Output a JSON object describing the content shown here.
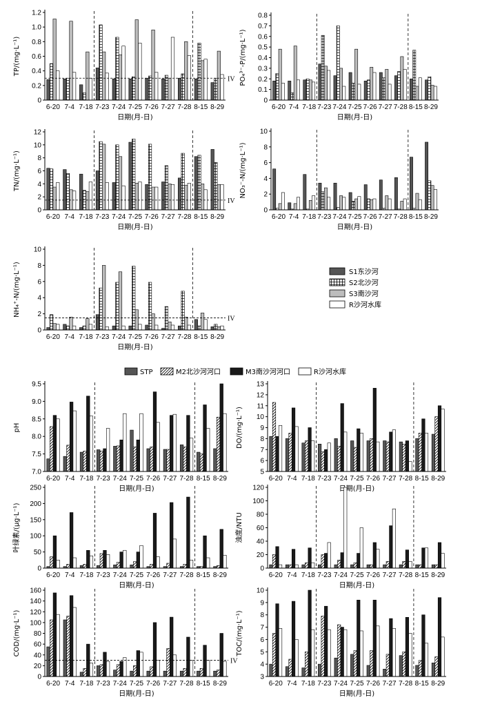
{
  "chart_data": [
    {
      "type": "bar",
      "categories": [
        "6-20",
        "7-4",
        "7-18",
        "7-23",
        "7-24",
        "7-25",
        "7-26",
        "7-27",
        "7-28",
        "8-15",
        "8-29"
      ],
      "series": [
        {
          "name": "S1东沙河",
          "values": [
            0.28,
            0.29,
            0.21,
            0.44,
            0.29,
            0.29,
            0.3,
            0.29,
            0.3,
            0.29,
            0.24
          ]
        },
        {
          "name": "S2北沙河",
          "values": [
            0.5,
            0.3,
            0.1,
            1.03,
            0.86,
            0.32,
            0.33,
            0.34,
            0.36,
            0.78,
            0.3
          ]
        },
        {
          "name": "S3南沙河",
          "values": [
            1.11,
            1.08,
            0.66,
            0.66,
            0.62,
            1.1,
            0.96,
            0.3,
            0.8,
            0.54,
            0.67
          ]
        },
        {
          "name": "R沙河水库",
          "values": [
            0.4,
            0.38,
            0.3,
            0.37,
            0.74,
            0.78,
            0.38,
            0.86,
            0.61,
            0.56,
            0.35
          ]
        }
      ],
      "ylabel": "TP/(mg·L⁻¹)",
      "xlabel": "日期(月-日)",
      "ylim": [
        0,
        1.2
      ],
      "yticks": [
        "0",
        "0.2",
        "0.4",
        "0.6",
        "0.8",
        "1.0",
        "1.2"
      ],
      "reference": {
        "value": 0.3,
        "label": "IV"
      },
      "dashed_after": [
        "7-18",
        "7-28"
      ]
    },
    {
      "type": "bar",
      "categories": [
        "6-20",
        "7-4",
        "7-18",
        "7-23",
        "7-24",
        "7-25",
        "7-26",
        "7-27",
        "7-28",
        "8-15",
        "8-29"
      ],
      "series": [
        {
          "name": "S1东沙河",
          "values": [
            0.18,
            0.18,
            0.19,
            0.34,
            0.23,
            0.26,
            0.18,
            0.26,
            0.23,
            0.2,
            0.19
          ]
        },
        {
          "name": "S2北沙河",
          "values": [
            0.25,
            0.07,
            0.2,
            0.61,
            0.7,
            0.16,
            0.19,
            0.21,
            0.27,
            0.47,
            0.22
          ]
        },
        {
          "name": "S3南沙河",
          "values": [
            0.48,
            0.51,
            0.19,
            0.32,
            0.3,
            0.48,
            0.31,
            0.29,
            0.41,
            0.13,
            0.14
          ]
        },
        {
          "name": "R沙河水库",
          "values": [
            0.16,
            0.19,
            0.17,
            0.28,
            0.13,
            0.15,
            0.26,
            0.15,
            0.29,
            0.21,
            0.13
          ]
        }
      ],
      "ylabel": "PO₄³⁻-P/(mg·L⁻¹)",
      "xlabel": "日期(月-日)",
      "ylim": [
        0,
        0.8
      ],
      "yticks": [
        "0",
        "0.1",
        "0.2",
        "0.3",
        "0.4",
        "0.5",
        "0.6",
        "0.7",
        "0.8"
      ],
      "dashed_after": [
        "7-18",
        "7-28"
      ]
    },
    {
      "type": "bar",
      "categories": [
        "6-20",
        "7-4",
        "7-18",
        "7-23",
        "7-24",
        "7-25",
        "7-26",
        "7-27",
        "7-28",
        "8-15",
        "8-29"
      ],
      "series": [
        {
          "name": "S1东沙河",
          "values": [
            6.4,
            6.2,
            5.5,
            6.0,
            4.2,
            10.4,
            3.9,
            4.3,
            4.9,
            8.2,
            9.3
          ]
        },
        {
          "name": "S2北沙河",
          "values": [
            6.3,
            5.6,
            3.0,
            10.5,
            10.0,
            10.9,
            10.1,
            6.8,
            8.7,
            8.4,
            7.3
          ]
        },
        {
          "name": "S3南沙河",
          "values": [
            3.5,
            3.1,
            2.8,
            10.1,
            8.2,
            4.1,
            3.5,
            4.0,
            3.8,
            4.0,
            3.9
          ]
        },
        {
          "name": "R沙河水库",
          "values": [
            4.2,
            2.9,
            4.3,
            4.2,
            3.7,
            4.3,
            3.5,
            3.9,
            4.1,
            3.1,
            3.9
          ]
        }
      ],
      "ylabel": "TN/(mg·L⁻¹)",
      "xlabel": "日期(月-日)",
      "ylim": [
        0,
        12
      ],
      "yticks": [
        "0",
        "2",
        "4",
        "6",
        "8",
        "10",
        "12"
      ],
      "reference": {
        "value": 1.5,
        "label": "IV"
      },
      "dashed_after": [
        "7-18",
        "7-28"
      ]
    },
    {
      "type": "bar",
      "categories": [
        "6-20",
        "7-4",
        "7-18",
        "7-23",
        "7-24",
        "7-25",
        "7-26",
        "7-27",
        "7-28",
        "8-15",
        "8-29"
      ],
      "series": [
        {
          "name": "S1东沙河",
          "values": [
            5.2,
            0.9,
            4.5,
            3.4,
            3.4,
            2.2,
            3.2,
            3.8,
            4.1,
            6.7,
            8.6
          ]
        },
        {
          "name": "S2北沙河",
          "values": [
            0.2,
            0.1,
            0.1,
            2.3,
            0.3,
            1.1,
            1.4,
            0.2,
            0.1,
            0.2,
            3.7
          ]
        },
        {
          "name": "S3南沙河",
          "values": [
            0.8,
            0.8,
            1.2,
            2.8,
            1.8,
            1.4,
            1.3,
            1.8,
            1.1,
            2.1,
            3.1
          ]
        },
        {
          "name": "R沙河水库",
          "values": [
            2.2,
            1.6,
            1.8,
            1.6,
            1.6,
            1.7,
            1.4,
            1.4,
            1.4,
            1.3,
            2.6
          ]
        }
      ],
      "ylabel": "NO₃⁻-N/(mg·L⁻¹)",
      "xlabel": "日期(月-日)",
      "ylim": [
        0,
        10
      ],
      "yticks": [
        "0",
        "2",
        "4",
        "6",
        "8",
        "10"
      ],
      "dashed_after": [
        "7-18",
        "7-28"
      ]
    },
    {
      "type": "bar",
      "categories": [
        "6-20",
        "7-4",
        "7-18",
        "7-23",
        "7-24",
        "7-25",
        "7-26",
        "7-27",
        "7-28",
        "8-15",
        "8-29"
      ],
      "series": [
        {
          "name": "S1东沙河",
          "values": [
            0.3,
            0.7,
            0.3,
            1.9,
            0.5,
            0.5,
            0.6,
            0.2,
            0.5,
            1.3,
            0.4
          ]
        },
        {
          "name": "S2北沙河",
          "values": [
            1.9,
            0.5,
            0.5,
            5.2,
            5.9,
            7.9,
            5.9,
            2.9,
            4.8,
            0.5,
            0.7
          ]
        },
        {
          "name": "S3南沙河",
          "values": [
            0.8,
            1.6,
            1.4,
            8.0,
            7.2,
            2.5,
            2.0,
            1.0,
            1.6,
            2.1,
            0.4
          ]
        },
        {
          "name": "R沙河水库",
          "values": [
            0.7,
            0.5,
            0.7,
            0.4,
            0.5,
            0.7,
            0.6,
            0.6,
            0.6,
            1.3,
            0.5
          ]
        }
      ],
      "ylabel": "NH₄⁺-N/(mg·L⁻¹)",
      "xlabel": "日期(月-日)",
      "ylim": [
        0,
        10
      ],
      "yticks": [
        "0",
        "2",
        "4",
        "6",
        "8",
        "10"
      ],
      "reference": {
        "value": 1.5,
        "label": "IV"
      },
      "dashed_after": [
        "7-18",
        "7-28"
      ]
    },
    {
      "type": "bar",
      "categories": [
        "6-20",
        "7-4",
        "7-18",
        "7-23",
        "7-24",
        "7-25",
        "7-26",
        "7-27",
        "7-28",
        "8-15",
        "8-29"
      ],
      "series": [
        {
          "name": "STP",
          "values": [
            7.36,
            7.43,
            7.55,
            7.62,
            7.72,
            8.18,
            7.65,
            7.63,
            7.76,
            7.55,
            7.65
          ]
        },
        {
          "name": "M2北沙河河口",
          "values": [
            8.28,
            7.75,
            7.58,
            7.58,
            7.73,
            7.7,
            7.7,
            7.63,
            7.7,
            7.5,
            8.55
          ]
        },
        {
          "name": "M3南沙河河口",
          "values": [
            8.6,
            8.98,
            9.15,
            7.65,
            7.9,
            7.9,
            9.27,
            8.6,
            8.6,
            8.9,
            9.52
          ]
        },
        {
          "name": "R沙河水库",
          "values": [
            8.5,
            8.73,
            8.58,
            8.23,
            8.65,
            8.65,
            8.4,
            8.63,
            7.95,
            8.23,
            8.65
          ]
        }
      ],
      "ylabel": "pH",
      "xlabel": "日期(月-日)",
      "ylim": [
        7.0,
        9.5
      ],
      "yticks": [
        "7.0",
        "7.5",
        "8.0",
        "8.5",
        "9.0",
        "9.5"
      ],
      "dashed_after": [
        "7-18",
        "7-28"
      ]
    },
    {
      "type": "bar",
      "categories": [
        "6-20",
        "7-4",
        "7-18",
        "7-23",
        "7-24",
        "7-25",
        "7-26",
        "7-27",
        "7-28",
        "8-15",
        "8-29"
      ],
      "series": [
        {
          "name": "STP",
          "values": [
            8.2,
            8.0,
            7.6,
            7.5,
            8.0,
            7.8,
            7.8,
            7.8,
            7.7,
            8.0,
            8.4
          ]
        },
        {
          "name": "M2北沙河河口",
          "values": [
            11.3,
            8.5,
            7.8,
            6.8,
            7.3,
            7.2,
            8.0,
            7.7,
            7.5,
            8.5,
            10.0
          ]
        },
        {
          "name": "M3南沙河河口",
          "values": [
            8.2,
            10.8,
            9.0,
            7.0,
            11.2,
            8.9,
            12.6,
            8.6,
            7.8,
            9.8,
            11.0
          ]
        },
        {
          "name": "R沙河水库",
          "values": [
            9.2,
            9.1,
            7.8,
            7.6,
            8.6,
            8.5,
            7.7,
            8.8,
            5.9,
            8.5,
            10.7
          ]
        }
      ],
      "ylabel": "DO/(mg·L⁻¹)",
      "xlabel": "日期(月-日)",
      "ylim": [
        5,
        13
      ],
      "yticks": [
        "5",
        "6",
        "7",
        "8",
        "9",
        "10",
        "11",
        "12",
        "13"
      ],
      "dashed_after": [
        "7-18",
        "7-28"
      ]
    },
    {
      "type": "bar",
      "categories": [
        "6-20",
        "7-4",
        "7-18",
        "7-23",
        "7-24",
        "7-25",
        "7-26",
        "7-27",
        "7-28",
        "8-15",
        "8-29"
      ],
      "series": [
        {
          "name": "STP",
          "values": [
            5,
            5,
            8,
            8,
            10,
            10,
            5,
            5,
            5,
            5,
            5
          ]
        },
        {
          "name": "M2北沙河河口",
          "values": [
            35,
            12,
            12,
            45,
            18,
            20,
            12,
            15,
            12,
            5,
            8
          ]
        },
        {
          "name": "M3南沙河河口",
          "values": [
            100,
            172,
            55,
            55,
            50,
            50,
            170,
            203,
            220,
            100,
            120
          ]
        },
        {
          "name": "R沙河水库",
          "values": [
            25,
            32,
            38,
            42,
            55,
            70,
            35,
            90,
            25,
            32,
            40
          ]
        }
      ],
      "ylabel": "叶绿素/(μg·L⁻¹)",
      "xlabel": "日期(月-日)",
      "ylim": [
        0,
        250
      ],
      "yticks": [
        "0",
        "50",
        "100",
        "150",
        "200",
        "250"
      ],
      "dashed_after": [
        "7-18",
        "7-28"
      ]
    },
    {
      "type": "bar",
      "categories": [
        "6-20",
        "7-4",
        "7-18",
        "7-23",
        "7-24",
        "7-25",
        "7-26",
        "7-27",
        "7-28",
        "8-15",
        "8-29"
      ],
      "series": [
        {
          "name": "STP",
          "values": [
            5,
            5,
            5,
            5,
            5,
            5,
            5,
            5,
            5,
            5,
            5
          ]
        },
        {
          "name": "M2北沙河河口",
          "values": [
            20,
            5,
            8,
            20,
            12,
            8,
            5,
            10,
            10,
            5,
            5
          ]
        },
        {
          "name": "M3南沙河河口",
          "values": [
            32,
            28,
            30,
            22,
            23,
            22,
            38,
            63,
            27,
            30,
            38
          ]
        },
        {
          "name": "R沙河水库",
          "values": [
            5,
            5,
            8,
            38,
            120,
            60,
            28,
            88,
            10,
            30,
            22
          ]
        }
      ],
      "ylabel": "浊度/NTU",
      "xlabel": "日期(月-日)",
      "ylim": [
        0,
        120
      ],
      "yticks": [
        "0",
        "20",
        "40",
        "60",
        "80",
        "100",
        "120"
      ],
      "dashed_after": [
        "7-18",
        "7-28"
      ]
    },
    {
      "type": "bar",
      "categories": [
        "6-20",
        "7-4",
        "7-18",
        "7-23",
        "7-24",
        "7-25",
        "7-26",
        "7-27",
        "7-28",
        "8-15",
        "8-29"
      ],
      "series": [
        {
          "name": "STP",
          "values": [
            55,
            105,
            8,
            20,
            12,
            10,
            10,
            10,
            10,
            10,
            10
          ]
        },
        {
          "name": "M2北沙河河口",
          "values": [
            105,
            112,
            15,
            22,
            22,
            20,
            18,
            52,
            15,
            15,
            12
          ]
        },
        {
          "name": "M3南沙河河口",
          "values": [
            155,
            150,
            60,
            45,
            28,
            48,
            100,
            110,
            73,
            58,
            80
          ]
        },
        {
          "name": "R沙河水库",
          "values": [
            115,
            128,
            25,
            28,
            35,
            45,
            30,
            40,
            30,
            30,
            28
          ]
        }
      ],
      "ylabel": "COD/(mg·L⁻¹)",
      "xlabel": "日期(月-日)",
      "ylim": [
        0,
        160
      ],
      "yticks": [
        "0",
        "20",
        "40",
        "60",
        "80",
        "100",
        "120",
        "140",
        "160"
      ],
      "reference": {
        "value": 30,
        "label": "IV"
      },
      "dashed_after": [
        "7-18",
        "7-28"
      ]
    },
    {
      "type": "bar",
      "categories": [
        "6-20",
        "7-4",
        "7-18",
        "7-23",
        "7-24",
        "7-25",
        "7-26",
        "7-27",
        "7-28",
        "8-15",
        "8-29"
      ],
      "series": [
        {
          "name": "STP",
          "values": [
            4.0,
            3.8,
            3.7,
            4.0,
            4.5,
            4.8,
            3.9,
            3.6,
            4.7,
            3.9,
            4.1
          ]
        },
        {
          "name": "M2北沙河河口",
          "values": [
            6.5,
            4.4,
            5.0,
            7.9,
            7.2,
            5.1,
            5.1,
            4.8,
            5.0,
            4.3,
            4.6
          ]
        },
        {
          "name": "M3南沙河河口",
          "values": [
            8.9,
            9.1,
            10.2,
            8.7,
            7.0,
            9.2,
            9.2,
            7.7,
            7.8,
            8.0,
            9.4
          ]
        },
        {
          "name": "R沙河水库",
          "values": [
            6.9,
            6.0,
            6.8,
            6.8,
            6.8,
            6.7,
            7.1,
            6.9,
            6.5,
            5.7,
            6.2
          ]
        }
      ],
      "ylabel": "TOC/(mg·L⁻¹)",
      "xlabel": "日期(月-日)",
      "ylim": [
        3,
        10
      ],
      "yticks": [
        "3",
        "4",
        "5",
        "6",
        "7",
        "8",
        "9",
        "10"
      ],
      "dashed_after": [
        "7-18",
        "7-28"
      ]
    }
  ],
  "legend_top": [
    "S1东沙河",
    "S2北沙河",
    "S3南沙河",
    "R沙河水库"
  ],
  "legend_bottom": [
    "STP",
    "M2北沙河河口",
    "M3南沙河河口",
    "R沙河水库"
  ],
  "colors": {
    "dark": "#555555",
    "light": "#bdbdbd",
    "white": "#ffffff",
    "black": "#1a1a1a",
    "m2_hatch": "diagonal",
    "s2_hatch": "grid"
  }
}
